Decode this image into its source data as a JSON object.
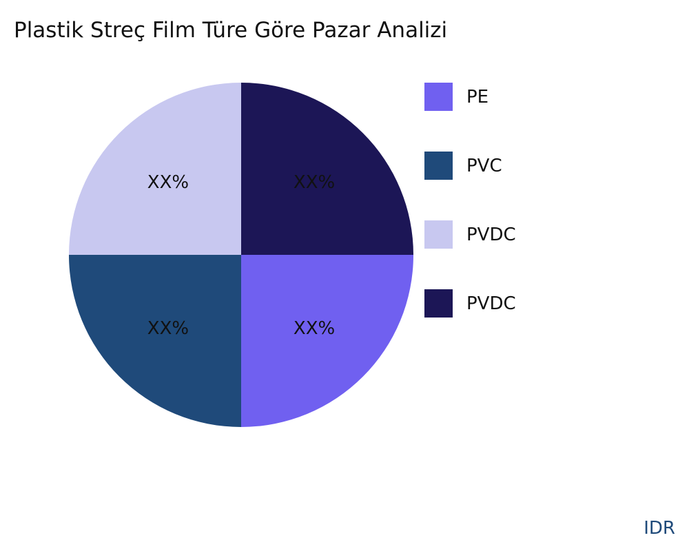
{
  "chart_data": {
    "type": "pie",
    "title": "Plastik Streç Film Türe Göre Pazar Analizi",
    "slices": [
      {
        "name": "PE",
        "value": 25,
        "label": "XX%",
        "color": "#7060f0"
      },
      {
        "name": "PVC",
        "value": 25,
        "label": "XX%",
        "color": "#1f4a7a"
      },
      {
        "name": "PVDC",
        "value": 25,
        "label": "XX%",
        "color": "#c8c8f0"
      },
      {
        "name": "PVDC",
        "value": 25,
        "label": "XX%",
        "color": "#1c1656"
      }
    ],
    "start_angle": "3 o'clock",
    "direction": "clockwise",
    "legend_position": "right"
  },
  "brand": "IDR"
}
